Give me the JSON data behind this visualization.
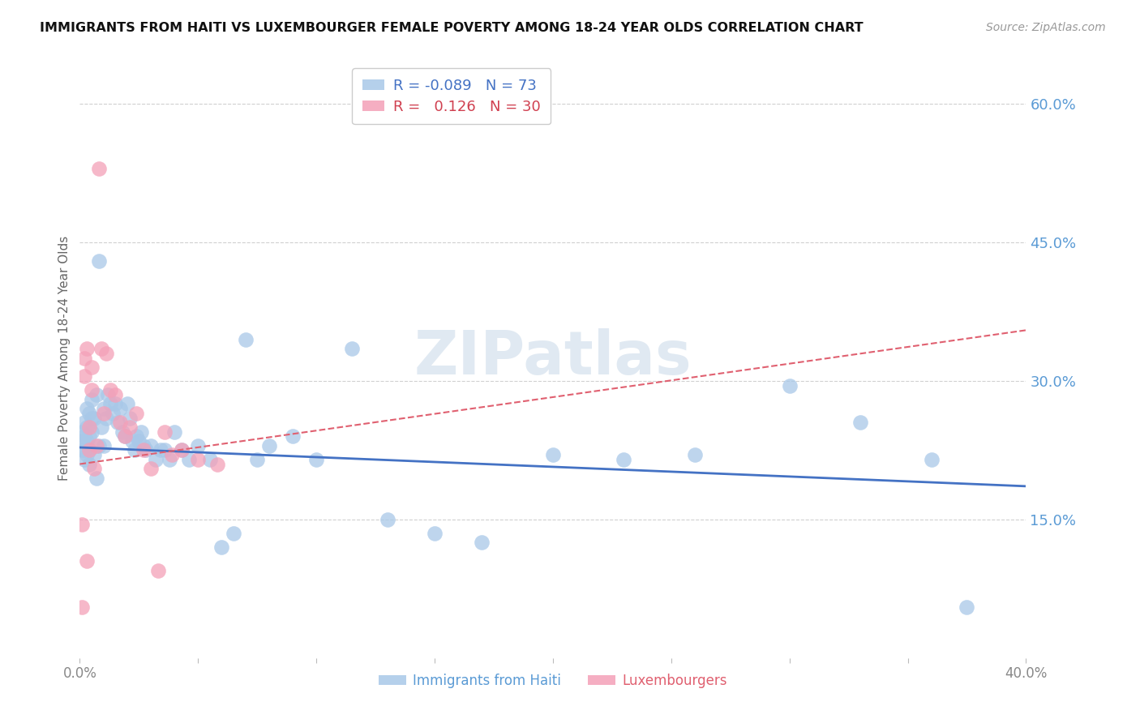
{
  "title": "IMMIGRANTS FROM HAITI VS LUXEMBOURGER FEMALE POVERTY AMONG 18-24 YEAR OLDS CORRELATION CHART",
  "source": "Source: ZipAtlas.com",
  "ylabel": "Female Poverty Among 18-24 Year Olds",
  "xlim": [
    0.0,
    0.4
  ],
  "ylim": [
    0.0,
    0.65
  ],
  "xticks": [
    0.0,
    0.05,
    0.1,
    0.15,
    0.2,
    0.25,
    0.3,
    0.35,
    0.4
  ],
  "xtick_labels": [
    "0.0%",
    "",
    "",
    "",
    "",
    "",
    "",
    "",
    "40.0%"
  ],
  "ytick_labels_right": [
    "60.0%",
    "45.0%",
    "30.0%",
    "15.0%"
  ],
  "yticks_right": [
    0.6,
    0.45,
    0.3,
    0.15
  ],
  "series1_color": "#a8c8e8",
  "series2_color": "#f4a0b8",
  "trend1_color": "#4472c4",
  "trend2_color": "#e06070",
  "legend_r1": "-0.089",
  "legend_n1": "73",
  "legend_r2": "0.126",
  "legend_n2": "30",
  "legend_label1": "Immigrants from Haiti",
  "legend_label2": "Luxembourgers",
  "watermark": "ZIPatlas",
  "background_color": "#ffffff",
  "grid_color": "#d0d0d0",
  "haiti_x": [
    0.001,
    0.001,
    0.001,
    0.002,
    0.002,
    0.002,
    0.002,
    0.003,
    0.003,
    0.003,
    0.003,
    0.004,
    0.004,
    0.004,
    0.004,
    0.005,
    0.005,
    0.005,
    0.006,
    0.006,
    0.007,
    0.007,
    0.008,
    0.008,
    0.009,
    0.01,
    0.01,
    0.011,
    0.012,
    0.013,
    0.014,
    0.015,
    0.016,
    0.017,
    0.018,
    0.019,
    0.02,
    0.021,
    0.022,
    0.023,
    0.024,
    0.025,
    0.026,
    0.027,
    0.028,
    0.03,
    0.032,
    0.034,
    0.036,
    0.038,
    0.04,
    0.043,
    0.046,
    0.05,
    0.055,
    0.06,
    0.065,
    0.07,
    0.075,
    0.08,
    0.09,
    0.1,
    0.115,
    0.13,
    0.15,
    0.17,
    0.2,
    0.23,
    0.26,
    0.3,
    0.33,
    0.36,
    0.375
  ],
  "haiti_y": [
    0.245,
    0.235,
    0.225,
    0.255,
    0.24,
    0.225,
    0.215,
    0.27,
    0.25,
    0.235,
    0.22,
    0.265,
    0.24,
    0.225,
    0.21,
    0.28,
    0.26,
    0.245,
    0.26,
    0.22,
    0.285,
    0.195,
    0.43,
    0.23,
    0.25,
    0.27,
    0.23,
    0.26,
    0.285,
    0.275,
    0.265,
    0.275,
    0.255,
    0.27,
    0.245,
    0.24,
    0.275,
    0.26,
    0.235,
    0.225,
    0.24,
    0.235,
    0.245,
    0.23,
    0.225,
    0.23,
    0.215,
    0.225,
    0.225,
    0.215,
    0.245,
    0.225,
    0.215,
    0.23,
    0.215,
    0.12,
    0.135,
    0.345,
    0.215,
    0.23,
    0.24,
    0.215,
    0.335,
    0.15,
    0.135,
    0.125,
    0.22,
    0.215,
    0.22,
    0.295,
    0.255,
    0.215,
    0.055
  ],
  "lux_x": [
    0.001,
    0.001,
    0.002,
    0.002,
    0.003,
    0.003,
    0.004,
    0.004,
    0.005,
    0.005,
    0.006,
    0.007,
    0.008,
    0.009,
    0.01,
    0.011,
    0.013,
    0.015,
    0.017,
    0.019,
    0.021,
    0.024,
    0.027,
    0.03,
    0.033,
    0.036,
    0.039,
    0.043,
    0.05,
    0.058
  ],
  "lux_y": [
    0.145,
    0.055,
    0.325,
    0.305,
    0.335,
    0.105,
    0.25,
    0.225,
    0.315,
    0.29,
    0.205,
    0.23,
    0.53,
    0.335,
    0.265,
    0.33,
    0.29,
    0.285,
    0.255,
    0.24,
    0.25,
    0.265,
    0.225,
    0.205,
    0.095,
    0.245,
    0.22,
    0.225,
    0.215,
    0.21
  ],
  "haiti_trend_x0": 0.0,
  "haiti_trend_x1": 0.4,
  "haiti_trend_y0": 0.228,
  "haiti_trend_y1": 0.186,
  "lux_trend_x0": 0.0,
  "lux_trend_x1": 0.4,
  "lux_trend_y0": 0.21,
  "lux_trend_y1": 0.355
}
